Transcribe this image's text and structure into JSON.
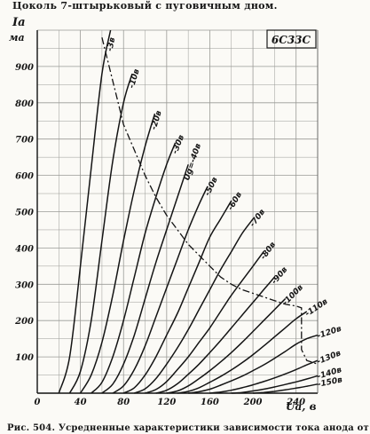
{
  "header_text": "Цоколь 7-штырьковый с пуговичным дном.",
  "caption_text": "Рис. 504. Усредненные характеристики зависимости тока анода от",
  "chart_data": {
    "type": "line",
    "title": "6С33С",
    "xlabel": "Ua, в",
    "ylabel": "Ia, ма",
    "xlim": [
      0,
      260
    ],
    "ylim": [
      0,
      1000
    ],
    "x_ticks": [
      0,
      40,
      80,
      120,
      160,
      200,
      240
    ],
    "x_tick_labels": [
      "0",
      "40",
      "80",
      "120",
      "160",
      "200",
      "240"
    ],
    "y_ticks": [
      100,
      200,
      300,
      400,
      500,
      600,
      700,
      800,
      900
    ],
    "y_tick_labels": [
      "100",
      "200",
      "300",
      "400",
      "500",
      "600",
      "700",
      "800",
      "900"
    ],
    "grid": true,
    "series": [
      {
        "name": "-3в",
        "x": [
          20,
          30,
          40,
          50,
          60,
          68
        ],
        "y": [
          0,
          100,
          350,
          620,
          880,
          1000
        ]
      },
      {
        "name": "-10в",
        "x": [
          30,
          40,
          50,
          60,
          70,
          80,
          88
        ],
        "y": [
          0,
          60,
          200,
          420,
          640,
          800,
          880
        ]
      },
      {
        "name": "-20в",
        "x": [
          40,
          50,
          60,
          70,
          80,
          90,
          100,
          109
        ],
        "y": [
          0,
          50,
          140,
          270,
          420,
          560,
          680,
          770
        ]
      },
      {
        "name": "-30в",
        "x": [
          50,
          60,
          70,
          80,
          90,
          100,
          110,
          120,
          128
        ],
        "y": [
          0,
          30,
          100,
          200,
          320,
          440,
          540,
          630,
          690
        ]
      },
      {
        "name": "Ug=-40в",
        "x": [
          60,
          70,
          80,
          90,
          100,
          110,
          120,
          130,
          140
        ],
        "y": [
          0,
          25,
          80,
          160,
          260,
          360,
          450,
          540,
          630
        ]
      },
      {
        "name": "-50в",
        "x": [
          70,
          80,
          90,
          100,
          110,
          120,
          130,
          140,
          150,
          158
        ],
        "y": [
          0,
          20,
          65,
          130,
          210,
          290,
          370,
          450,
          520,
          570
        ]
      },
      {
        "name": "-60в",
        "x": [
          80,
          90,
          100,
          110,
          120,
          130,
          140,
          150,
          160,
          170,
          180
        ],
        "y": [
          0,
          15,
          50,
          100,
          160,
          220,
          290,
          360,
          430,
          480,
          530
        ]
      },
      {
        "name": "-70в",
        "x": [
          90,
          100,
          110,
          120,
          130,
          140,
          150,
          160,
          170,
          180,
          190,
          200
        ],
        "y": [
          0,
          12,
          40,
          80,
          125,
          175,
          230,
          285,
          340,
          390,
          440,
          480
        ]
      },
      {
        "name": "-80в",
        "x": [
          100,
          110,
          120,
          130,
          140,
          150,
          160,
          170,
          180,
          190,
          200,
          210
        ],
        "y": [
          0,
          10,
          32,
          65,
          100,
          140,
          180,
          225,
          270,
          310,
          350,
          390
        ]
      },
      {
        "name": "-90в",
        "x": [
          110,
          120,
          130,
          140,
          150,
          160,
          170,
          180,
          190,
          200,
          210,
          220
        ],
        "y": [
          0,
          8,
          26,
          52,
          80,
          112,
          145,
          180,
          215,
          250,
          285,
          320
        ]
      },
      {
        "name": "-100в",
        "x": [
          120,
          130,
          140,
          150,
          160,
          170,
          180,
          190,
          200,
          210,
          220,
          230
        ],
        "y": [
          0,
          6,
          20,
          40,
          62,
          86,
          112,
          140,
          170,
          200,
          230,
          260
        ]
      },
      {
        "name": "-110в",
        "x": [
          130,
          140,
          150,
          160,
          170,
          180,
          190,
          200,
          210,
          220,
          230,
          240,
          250
        ],
        "y": [
          0,
          5,
          15,
          30,
          46,
          64,
          84,
          106,
          130,
          155,
          180,
          205,
          225
        ]
      },
      {
        "name": "-120в",
        "x": [
          140,
          150,
          160,
          170,
          180,
          190,
          200,
          210,
          220,
          230,
          240,
          250,
          260
        ],
        "y": [
          0,
          4,
          11,
          22,
          34,
          47,
          62,
          78,
          96,
          115,
          135,
          150,
          160
        ]
      },
      {
        "name": "-130в",
        "x": [
          160,
          170,
          180,
          190,
          200,
          210,
          220,
          230,
          240,
          250,
          260
        ],
        "y": [
          0,
          3,
          8,
          15,
          23,
          32,
          42,
          53,
          65,
          78,
          90
        ]
      },
      {
        "name": "-140в",
        "x": [
          180,
          190,
          200,
          210,
          220,
          230,
          240,
          250,
          260
        ],
        "y": [
          0,
          2,
          6,
          11,
          17,
          24,
          31,
          39,
          48
        ]
      },
      {
        "name": "-150в",
        "x": [
          200,
          210,
          220,
          230,
          240,
          250,
          260
        ],
        "y": [
          0,
          2,
          5,
          9,
          14,
          19,
          25
        ]
      }
    ],
    "annotations": [
      {
        "name": "max-dissipation-boundary",
        "style": "dash-dot",
        "x": [
          60,
          65,
          70,
          75,
          80,
          90,
          100,
          110,
          120,
          130,
          140,
          150,
          160,
          170,
          180,
          190,
          200,
          210,
          220,
          230,
          240,
          245,
          245,
          250,
          255,
          260
        ],
        "y": [
          980,
          920,
          860,
          800,
          740,
          670,
          600,
          540,
          490,
          450,
          410,
          380,
          350,
          320,
          300,
          285,
          275,
          265,
          255,
          245,
          240,
          235,
          120,
          90,
          85,
          80
        ]
      }
    ]
  }
}
